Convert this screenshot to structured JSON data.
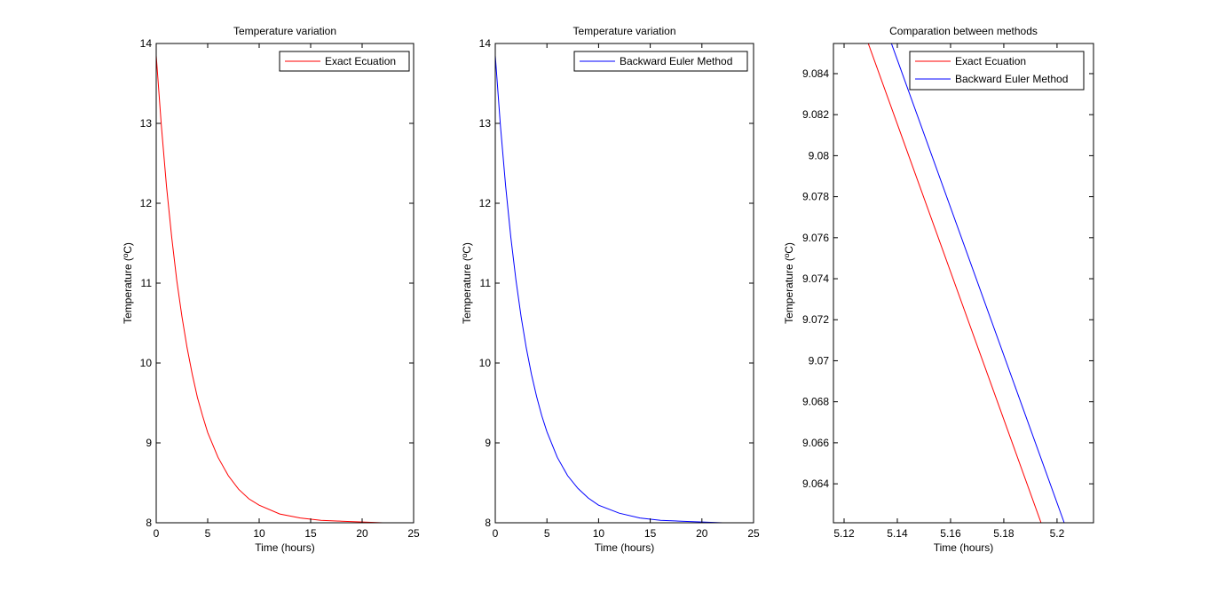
{
  "chart_data": [
    {
      "type": "line",
      "title": "Temperature variation",
      "xlabel": "Time (hours)",
      "ylabel": "Temperature (ºC)",
      "xlim": [
        0,
        25
      ],
      "ylim": [
        8,
        14
      ],
      "xticks": [
        0,
        5,
        10,
        15,
        20,
        25
      ],
      "xtick_labels": [
        "0",
        "5",
        "10",
        "15",
        "20",
        "25"
      ],
      "yticks": [
        8,
        9,
        10,
        11,
        12,
        13,
        14
      ],
      "ytick_labels": [
        "8",
        "9",
        "10",
        "11",
        "12",
        "13",
        "14"
      ],
      "legend": "top-right",
      "series": [
        {
          "name": "Exact Ecuation",
          "color": "#ff0000",
          "x": [
            0,
            0.5,
            1,
            1.5,
            2,
            2.5,
            3,
            3.5,
            4,
            4.5,
            5,
            6,
            7,
            8,
            9,
            10,
            12,
            14,
            16,
            18,
            20,
            22,
            24
          ],
          "y": [
            13.85,
            12.97,
            12.21,
            11.58,
            11.03,
            10.58,
            10.19,
            9.86,
            9.57,
            9.34,
            9.13,
            8.82,
            8.59,
            8.42,
            8.3,
            8.22,
            8.11,
            8.06,
            8.03,
            8.02,
            8.01,
            8.0,
            8.0
          ]
        }
      ]
    },
    {
      "type": "line",
      "title": "Temperature variation",
      "xlabel": "Time (hours)",
      "ylabel": "Temperature (ºC)",
      "xlim": [
        0,
        25
      ],
      "ylim": [
        8,
        14
      ],
      "xticks": [
        0,
        5,
        10,
        15,
        20,
        25
      ],
      "xtick_labels": [
        "0",
        "5",
        "10",
        "15",
        "20",
        "25"
      ],
      "yticks": [
        8,
        9,
        10,
        11,
        12,
        13,
        14
      ],
      "ytick_labels": [
        "8",
        "9",
        "10",
        "11",
        "12",
        "13",
        "14"
      ],
      "legend": "top-right",
      "series": [
        {
          "name": "Backward Euler Method",
          "color": "#0000ff",
          "x": [
            0,
            0.5,
            1,
            1.5,
            2,
            2.5,
            3,
            3.5,
            4,
            4.5,
            5,
            6,
            7,
            8,
            9,
            10,
            12,
            14,
            16,
            18,
            20,
            22,
            24
          ],
          "y": [
            13.85,
            12.97,
            12.22,
            11.58,
            11.04,
            10.58,
            10.19,
            9.86,
            9.58,
            9.34,
            9.14,
            8.82,
            8.59,
            8.43,
            8.31,
            8.22,
            8.12,
            8.06,
            8.03,
            8.02,
            8.01,
            8.0,
            8.0
          ]
        }
      ]
    },
    {
      "type": "line",
      "title": "Comparation between methods",
      "xlabel": "Time (hours)",
      "ylabel": "Temperature (ºC)",
      "xlim": [
        5.116,
        5.2137
      ],
      "ylim": [
        9.0621,
        9.08547
      ],
      "xticks": [
        5.12,
        5.14,
        5.16,
        5.18,
        5.2
      ],
      "xtick_labels": [
        "5.12",
        "5.14",
        "5.16",
        "5.18",
        "5.2"
      ],
      "yticks": [
        9.064,
        9.066,
        9.068,
        9.07,
        9.072,
        9.074,
        9.076,
        9.078,
        9.08,
        9.082,
        9.084
      ],
      "ytick_labels": [
        "9.064",
        "9.066",
        "9.068",
        "9.07",
        "9.072",
        "9.074",
        "9.076",
        "9.078",
        "9.08",
        "9.082",
        "9.084"
      ],
      "legend": "top-right",
      "series": [
        {
          "name": "Exact Ecuation",
          "color": "#ff0000",
          "x": [
            5.129,
            5.194
          ],
          "y": [
            9.0855,
            9.0621
          ]
        },
        {
          "name": "Backward Euler Method",
          "color": "#0000ff",
          "x": [
            5.1377,
            5.2027
          ],
          "y": [
            9.0855,
            9.0621
          ]
        }
      ]
    }
  ]
}
